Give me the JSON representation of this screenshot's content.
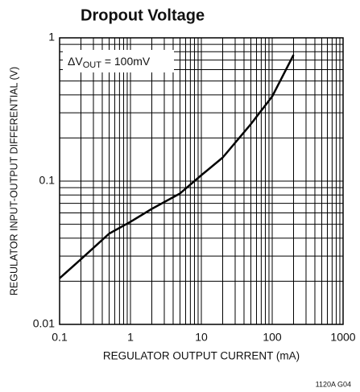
{
  "chart_data": {
    "type": "line",
    "title": "Dropout Voltage",
    "xlabel": "REGULATOR OUTPUT CURRENT (mA)",
    "ylabel": "REGULATOR INPUT-OUTPUT DIFFERENTIAL (V)",
    "annotation": {
      "prefix": "ΔV",
      "sub": "OUT",
      "suffix": " = 100mV"
    },
    "footnote": "1120A G04",
    "xscale": "log",
    "yscale": "log",
    "grid": true,
    "xlim": [
      0.1,
      1000
    ],
    "ylim": [
      0.01,
      1
    ],
    "xticks": [
      0.1,
      1,
      10,
      100,
      1000
    ],
    "yticks": [
      0.01,
      0.1,
      1
    ],
    "xminor_ticks": [
      0.2,
      0.3,
      0.4,
      0.5,
      0.6,
      0.7,
      0.8,
      0.9,
      2,
      3,
      4,
      5,
      6,
      7,
      8,
      9,
      20,
      30,
      40,
      50,
      60,
      70,
      80,
      90,
      200,
      300,
      400,
      500,
      600,
      700,
      800,
      900
    ],
    "yminor_ticks": [
      0.02,
      0.03,
      0.04,
      0.05,
      0.06,
      0.07,
      0.08,
      0.09,
      0.2,
      0.3,
      0.4,
      0.5,
      0.6,
      0.7,
      0.8,
      0.9
    ],
    "x": [
      0.1,
      0.2,
      0.5,
      1,
      2,
      5,
      10,
      20,
      50,
      100,
      200
    ],
    "series": [
      {
        "color": "#000000",
        "values": [
          0.021,
          0.0285,
          0.043,
          0.052,
          0.064,
          0.082,
          0.11,
          0.146,
          0.25,
          0.39,
          0.76
        ]
      }
    ]
  }
}
